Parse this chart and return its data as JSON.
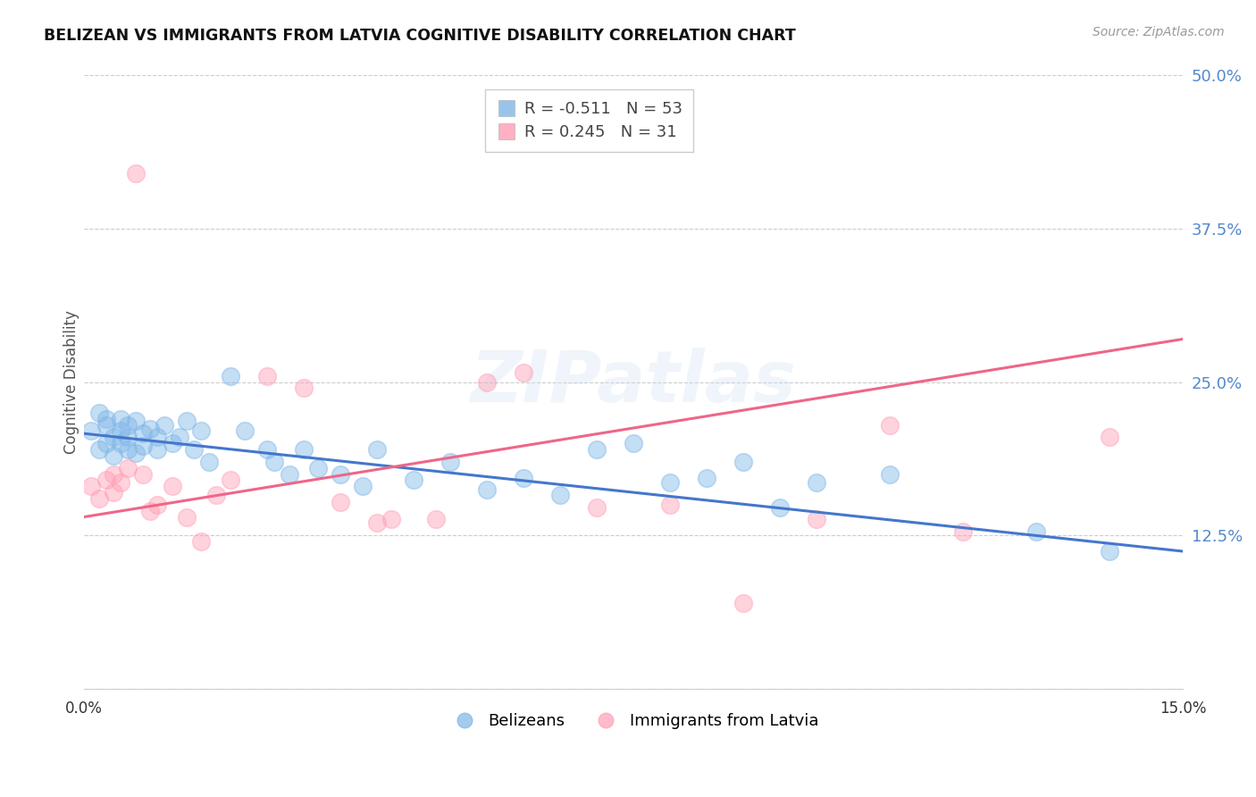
{
  "title": "BELIZEAN VS IMMIGRANTS FROM LATVIA COGNITIVE DISABILITY CORRELATION CHART",
  "source": "Source: ZipAtlas.com",
  "ylabel": "Cognitive Disability",
  "xlim": [
    0.0,
    0.15
  ],
  "ylim": [
    0.0,
    0.5
  ],
  "yticks": [
    0.0,
    0.125,
    0.25,
    0.375,
    0.5
  ],
  "xticks": [
    0.0,
    0.025,
    0.05,
    0.075,
    0.1,
    0.125,
    0.15
  ],
  "watermark": "ZIPatlas",
  "belizean_color": "#7EB6E8",
  "latvia_color": "#FF9EB5",
  "belizean_line_color": "#4477CC",
  "latvia_line_color": "#EE6688",
  "legend_blue_label": "R = -0.511   N = 53",
  "legend_pink_label": "R = 0.245   N = 31",
  "legend_bottom_blue": "Belizeans",
  "legend_bottom_pink": "Immigrants from Latvia",
  "belizean_x": [
    0.001,
    0.002,
    0.002,
    0.003,
    0.003,
    0.003,
    0.004,
    0.004,
    0.005,
    0.005,
    0.005,
    0.006,
    0.006,
    0.006,
    0.007,
    0.007,
    0.008,
    0.008,
    0.009,
    0.01,
    0.01,
    0.011,
    0.012,
    0.013,
    0.014,
    0.015,
    0.016,
    0.017,
    0.02,
    0.022,
    0.025,
    0.026,
    0.028,
    0.03,
    0.032,
    0.035,
    0.038,
    0.04,
    0.045,
    0.05,
    0.055,
    0.06,
    0.065,
    0.07,
    0.075,
    0.08,
    0.085,
    0.09,
    0.095,
    0.1,
    0.11,
    0.13,
    0.14
  ],
  "belizean_y": [
    0.21,
    0.225,
    0.195,
    0.22,
    0.2,
    0.215,
    0.205,
    0.19,
    0.22,
    0.21,
    0.2,
    0.215,
    0.205,
    0.195,
    0.218,
    0.192,
    0.208,
    0.198,
    0.212,
    0.205,
    0.195,
    0.215,
    0.2,
    0.205,
    0.218,
    0.195,
    0.21,
    0.185,
    0.255,
    0.21,
    0.195,
    0.185,
    0.175,
    0.195,
    0.18,
    0.175,
    0.165,
    0.195,
    0.17,
    0.185,
    0.162,
    0.172,
    0.158,
    0.195,
    0.2,
    0.168,
    0.172,
    0.185,
    0.148,
    0.168,
    0.175,
    0.128,
    0.112
  ],
  "latvia_x": [
    0.001,
    0.002,
    0.003,
    0.004,
    0.004,
    0.005,
    0.006,
    0.007,
    0.008,
    0.009,
    0.01,
    0.012,
    0.014,
    0.016,
    0.018,
    0.02,
    0.025,
    0.03,
    0.035,
    0.04,
    0.042,
    0.048,
    0.055,
    0.06,
    0.07,
    0.08,
    0.09,
    0.1,
    0.11,
    0.12,
    0.14
  ],
  "latvia_y": [
    0.165,
    0.155,
    0.17,
    0.175,
    0.16,
    0.168,
    0.18,
    0.42,
    0.175,
    0.145,
    0.15,
    0.165,
    0.14,
    0.12,
    0.158,
    0.17,
    0.255,
    0.245,
    0.152,
    0.135,
    0.138,
    0.138,
    0.25,
    0.258,
    0.148,
    0.15,
    0.07,
    0.138,
    0.215,
    0.128,
    0.205
  ],
  "blue_trend_x": [
    0.0,
    0.15
  ],
  "blue_trend_y": [
    0.208,
    0.112
  ],
  "pink_trend_x": [
    0.0,
    0.15
  ],
  "pink_trend_y": [
    0.14,
    0.285
  ]
}
